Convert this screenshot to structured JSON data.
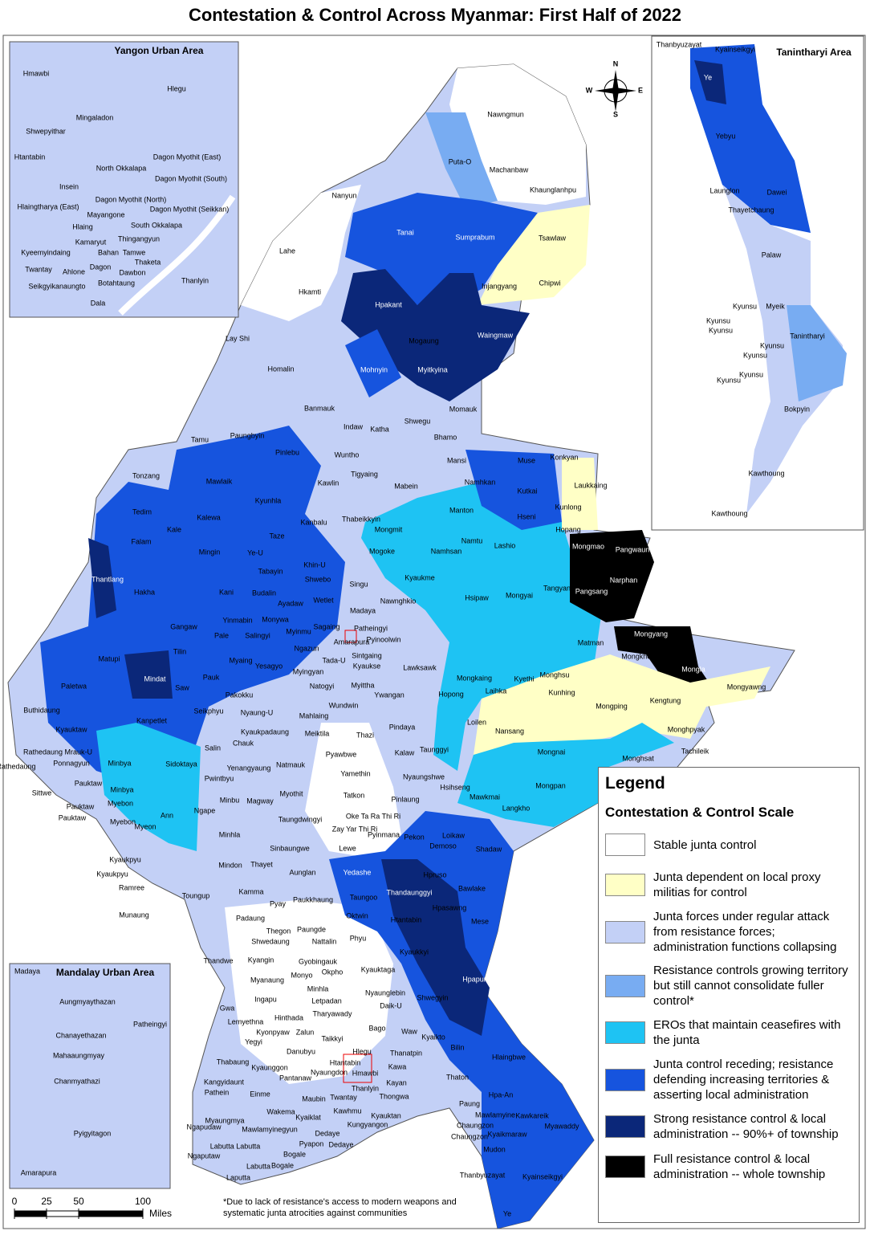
{
  "title": "Contestation & Control Across Myanmar: First Half of 2022",
  "map": {
    "labels": [
      "Nawngmun",
      "Puta-O",
      "Machanbaw",
      "Nanyun",
      "Khaunglanhpu",
      "Tanai",
      "Sumprabum",
      "Tsawlaw",
      "Lahe",
      "Injangyang",
      "Chipwi",
      "Hkamti",
      "Hpakant",
      "Waingmaw",
      "Lay Shi",
      "Mogaung",
      "Mohnyin",
      "Myitkyina",
      "Homalin",
      "Banmauk",
      "Shwegu",
      "Momauk",
      "Indaw",
      "Katha",
      "Bhamo",
      "Tamu",
      "Paungbyin",
      "Pinlebu",
      "Wuntho",
      "Mansi",
      "Tonzang",
      "Mawlaik",
      "Tigyaing",
      "Kawlin",
      "Mabein",
      "Namhkan",
      "Muse",
      "Konkyan",
      "Laukkaing",
      "Kutkai",
      "Kyunhla",
      "Kalewa",
      "Kanbalu",
      "Thabeikkyin",
      "Manton",
      "Hseni",
      "Kunlong",
      "Tedim",
      "Falam",
      "Kale",
      "Mongmit",
      "Namtu",
      "Hopang",
      "Mongmao",
      "Pangwaun",
      "Mingin",
      "Taze",
      "Ye-U",
      "Mogoke",
      "Namhsan",
      "Lashio",
      "Khin-U",
      "Thantlang",
      "Tabayin",
      "Shwebo",
      "Singu",
      "Kyaukme",
      "Narphan",
      "Hakha",
      "Kani",
      "Budalin",
      "Wetlet",
      "Nawnghkio",
      "Hsipaw",
      "Mongyai",
      "Tangyan",
      "Pangsang",
      "Ayadaw",
      "Madaya",
      "Yinmabin",
      "Monywa",
      "Sagaing",
      "Patheingyi",
      "Gangaw",
      "Pale",
      "Salingyi",
      "Myinmu",
      "Mongyang",
      "Amarapura",
      "Pyinoolwin",
      "Matman",
      "Tilin",
      "Matupi",
      "Ngazun",
      "Sintgaing",
      "Mongkhet",
      "Mindat",
      "Myaing",
      "Yesagyo",
      "Tada-U",
      "Kyaukse",
      "Lawksawk",
      "Mongkaing",
      "Kyethi",
      "Monghsu",
      "Mongla",
      "Paletwa",
      "Pauk",
      "Saw",
      "Myingyan",
      "Natogyi",
      "Myittha",
      "Ywangan",
      "Hopong",
      "Laihka",
      "Kunhing",
      "Mongyawng",
      "Seikphyu",
      "Pakokku",
      "Nyaung-U",
      "Mahlaing",
      "Wundwin",
      "Loilen",
      "Kengtung",
      "Mongping",
      "Buthidaung",
      "Kyauktaw",
      "Kanpetlet",
      "Kyaukpadaung",
      "Meiktila",
      "Thazi",
      "Pindaya",
      "Monghpyak",
      "Nansang",
      "Salin",
      "Chauk",
      "Kalaw",
      "Taunggyi",
      "Monghsat",
      "Tachileik",
      "Mongnai",
      "Rathedaung Mrauk-U",
      "Rathedaung",
      "Ponnagyun",
      "Minbya",
      "Sidoktaya",
      "Pyawbwe",
      "Yenangyaung",
      "Natmauk",
      "Nyaungshwe",
      "Hsihseng",
      "Yamethin",
      "Pwintbyu",
      "Mongpan",
      "Mawkmai",
      "Sittwe",
      "Pauktaw",
      "Minbya",
      "Myothit",
      "Tatkon",
      "Pinlaung",
      "Minbu",
      "Magway",
      "Langkho",
      "Myebon",
      "Pauktaw",
      "Pauktaw",
      "Ngape",
      "Ann",
      "Oke Ta Ra Thi Ri",
      "Taungdwingyi",
      "Myebon",
      "Myeon",
      "Zay Yar Thi Ri",
      "Pyinmana",
      "Pekon",
      "Loikaw",
      "Minhla",
      "Demoso",
      "Shadaw",
      "Sinbaungwe",
      "Lewe",
      "Kyaukpyu",
      "Mindon",
      "Thayet",
      "Aunglan",
      "Yedashe",
      "Hpruso",
      "Kyaukpyu",
      "Ramree",
      "Kamma",
      "Bawlake",
      "Toungup",
      "Thandaunggyi",
      "Taungoo",
      "Paukkhaung",
      "Hpasawng",
      "Pyay",
      "Oktwin",
      "Htantabin",
      "Mese",
      "Munaung",
      "Padaung",
      "Thegon",
      "Paungde",
      "Shwedaung",
      "Nattalin",
      "Phyu",
      "Thandwe",
      "Kyangin",
      "Gyobingauk",
      "Kyaukkyi",
      "Okpho",
      "Kyauktaga",
      "Hpapun",
      "Myanaung",
      "Monyo",
      "Minhla",
      "Nyaunglebin",
      "Shwegyin",
      "Ingapu",
      "Letpadan",
      "Daik-U",
      "Gwa",
      "Lemyethna",
      "Hinthada",
      "Tharyawady",
      "Kyonpyaw",
      "Zalun",
      "Bago",
      "Waw",
      "Yegyi",
      "Taikkyi",
      "Kyaikto",
      "Danubyu",
      "Hlegu",
      "Thanatpin",
      "Bilin",
      "Thabaung",
      "Kyaunggon",
      "Hmawbi",
      "Htantabin",
      "Nyaungdon",
      "Kawa",
      "Hlaingbwe",
      "Kangyidaunt",
      "Pantanaw",
      "Kayan",
      "Thaton",
      "Thanlyin",
      "Pathein",
      "Einme",
      "Maubin",
      "Twantay",
      "Thongwa",
      "Hpa-An",
      "Paung",
      "Wakema",
      "Kawhmu",
      "Kyauktan",
      "Mawlamyine",
      "Kawkareik",
      "Myawaddy",
      "Kyaiklat",
      "Kungyangon",
      "Chaungzon",
      "Myaungmya",
      "Dedaye",
      "Dedaye",
      "Ngapudaw",
      "Mawlamyinegyun",
      "Chaungzon",
      "Kyaikmaraw",
      "Labutta Labutta",
      "Pyapon",
      "Bogale",
      "Mudon",
      "Ngaputaw",
      "Labutta",
      "Bogale",
      "Thanbyuzayat",
      "Kyainseikgyi",
      "Laputta",
      "Ye"
    ]
  },
  "insets": {
    "yangon": {
      "title": "Yangon Urban Area",
      "labels": [
        "Hmawbi",
        "Hlegu",
        "Mingaladon",
        "Shwepyithar",
        "Htantabin",
        "Dagon Myothit (East)",
        "North Okkalapa",
        "Dagon Myothit (South)",
        "Insein",
        "Dagon Myothit (North)",
        "Hlaingtharya (East)",
        "Dagon Myothit (Seikkan)",
        "Mayangone",
        "Hlaing",
        "South Okkalapa",
        "Thingangyun",
        "Kamaryut",
        "Kyeemyindaing",
        "Bahan",
        "Tamwe",
        "Thaketa",
        "Twantay",
        "Dagon",
        "Ahlone",
        "Dawbon",
        "Thanlyin",
        "Seikgyikanaungto",
        "Botahtaung",
        "Dala"
      ]
    },
    "mandalay": {
      "title": "Mandalay Urban Area",
      "labels": [
        "Madaya",
        "Aungmyaythazan",
        "Patheingyi",
        "Chanayethazan",
        "Mahaaungmyay",
        "Chanmyathazi",
        "Pyigyitagon",
        "Amarapura"
      ]
    },
    "tanintharyi": {
      "title": "Tanintharyi Area",
      "labels": [
        "Thanbyuzayat",
        "Kyainseikgyi",
        "Ye",
        "Yebyu",
        "Launglon",
        "Dawei",
        "Thayetchaung",
        "Palaw",
        "Kyunsu",
        "Myeik",
        "Kyunsu",
        "Kyunsu",
        "Tanintharyi",
        "Kyunsu",
        "Kyunsu",
        "Kyunsu",
        "Kyunsu",
        "Bokpyin",
        "Kawthoung",
        "Kawthoung"
      ]
    }
  },
  "legend": {
    "title": "Legend",
    "subtitle": "Contestation & Control Scale",
    "items": [
      {
        "label": "Stable junta control",
        "color": "#ffffff"
      },
      {
        "label": "Junta dependent on local proxy militias for control",
        "color": "#ffffc6"
      },
      {
        "label": "Junta forces under regular attack from resistance forces; administration functions collapsing",
        "color": "#c3d0f6"
      },
      {
        "label": "Resistance controls growing territory but still cannot consolidate fuller control*",
        "color": "#78acf2"
      },
      {
        "label": "EROs that maintain ceasefires with the junta",
        "color": "#1ec3f3"
      },
      {
        "label": "Junta control receding; resistance defending increasing territories & asserting local administration",
        "color": "#1654de"
      },
      {
        "label": "Strong resistance control & local administration -- 90%+ of township",
        "color": "#0b2779"
      },
      {
        "label": "Full resistance control & local administration -- whole township",
        "color": "#000000"
      }
    ]
  },
  "scale_bar": {
    "ticks": [
      0,
      25,
      50,
      100
    ],
    "unit": "Miles"
  },
  "compass": {
    "n": "N",
    "e": "E",
    "s": "S",
    "w": "W"
  },
  "footnote": "*Due to lack of resistance's access to modern weapons and systematic junta atrocities against communities"
}
